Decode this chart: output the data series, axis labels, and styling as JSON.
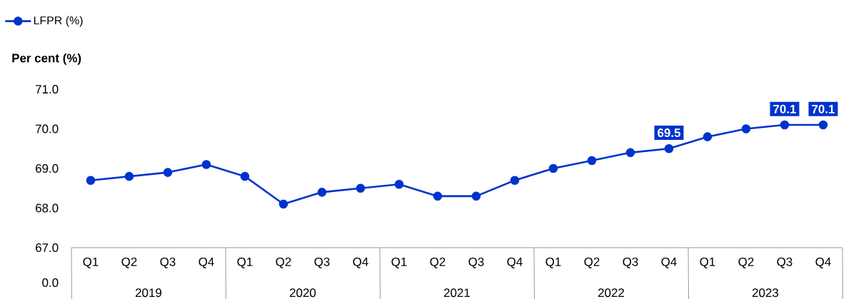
{
  "chart_data": {
    "type": "line",
    "categories": [
      "Q1",
      "Q2",
      "Q3",
      "Q4",
      "Q1",
      "Q2",
      "Q3",
      "Q4",
      "Q1",
      "Q2",
      "Q3",
      "Q4",
      "Q1",
      "Q2",
      "Q3",
      "Q4",
      "Q1",
      "Q2",
      "Q3",
      "Q4"
    ],
    "series": [
      {
        "name": "LFPR (%)",
        "color": "#0033cc",
        "values": [
          68.7,
          68.8,
          68.9,
          69.1,
          68.8,
          68.1,
          68.4,
          68.5,
          68.6,
          68.3,
          68.3,
          68.7,
          69.0,
          69.2,
          69.4,
          69.5,
          69.8,
          70.0,
          70.1,
          70.1
        ],
        "value_labels": [
          null,
          null,
          null,
          null,
          null,
          null,
          null,
          null,
          null,
          null,
          null,
          null,
          null,
          null,
          null,
          "69.5",
          null,
          null,
          "70.1",
          "70.1"
        ]
      }
    ],
    "ylabel": "Per cent (%)",
    "ylim": [
      67,
      71
    ],
    "yticks": [
      {
        "value": 67,
        "label": "67.0"
      },
      {
        "value": 68,
        "label": "68.0"
      },
      {
        "value": 69,
        "label": "69.0"
      },
      {
        "value": 70,
        "label": "70.0"
      },
      {
        "value": 71,
        "label": "71.0"
      }
    ],
    "annotations": [
      "0.0",
      "2019",
      "2020",
      "2021",
      "2022",
      "2023"
    ],
    "legend": "top left",
    "marker": "circle",
    "line_style": "solid",
    "grid": false
  }
}
